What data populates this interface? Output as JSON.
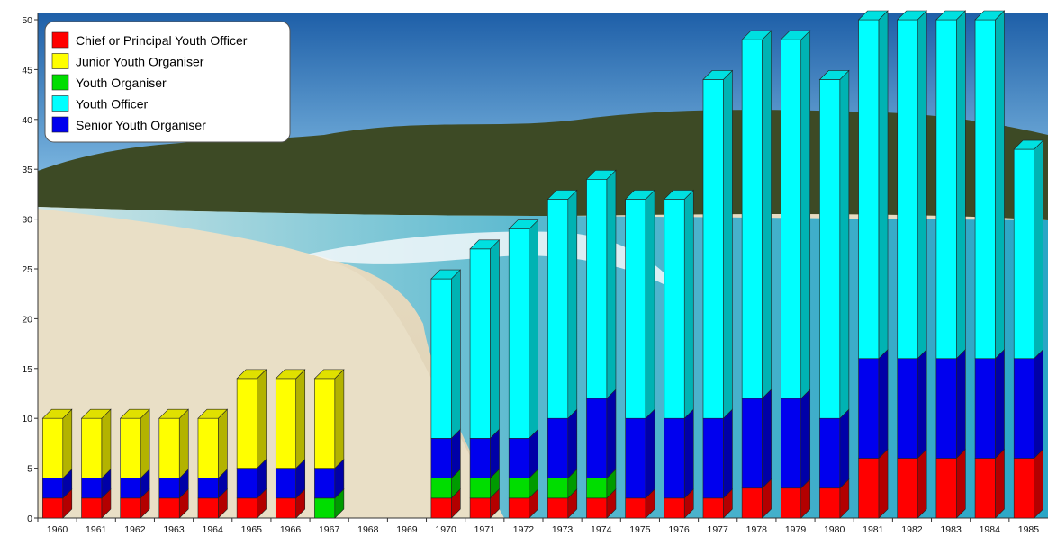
{
  "chart_data": {
    "type": "bar",
    "stacked": true,
    "style": "3d",
    "background": "beach-photo",
    "categories": [
      "1960",
      "1961",
      "1962",
      "1963",
      "1964",
      "1965",
      "1966",
      "1967",
      "1968",
      "1969",
      "1970",
      "1971",
      "1972",
      "1973",
      "1974",
      "1975",
      "1976",
      "1977",
      "1978",
      "1979",
      "1980",
      "1981",
      "1982",
      "1983",
      "1984",
      "1985"
    ],
    "ylim": [
      0,
      50
    ],
    "yticks": [
      0,
      5,
      10,
      15,
      20,
      25,
      30,
      35,
      40,
      45,
      50
    ],
    "grid": false,
    "legend_position": "top-left",
    "series": [
      {
        "name": "Chief or Principal Youth Officer",
        "color": "#ff0000",
        "values": [
          2,
          2,
          2,
          2,
          2,
          2,
          2,
          0,
          0,
          0,
          2,
          2,
          2,
          2,
          2,
          2,
          2,
          2,
          3,
          3,
          3,
          6,
          6,
          6,
          6,
          6
        ]
      },
      {
        "name": "Youth Organiser",
        "color": "#00dd00",
        "values": [
          0,
          0,
          0,
          0,
          0,
          0,
          0,
          2,
          0,
          0,
          2,
          2,
          2,
          2,
          2,
          0,
          0,
          0,
          0,
          0,
          0,
          0,
          0,
          0,
          0,
          0
        ]
      },
      {
        "name": "Senior Youth Organiser",
        "color": "#0000ee",
        "values": [
          2,
          2,
          2,
          2,
          2,
          3,
          3,
          3,
          0,
          0,
          4,
          4,
          4,
          6,
          8,
          8,
          8,
          8,
          9,
          9,
          7,
          10,
          10,
          10,
          10,
          10
        ]
      },
      {
        "name": "Youth Officer",
        "color": "#00ffff",
        "values": [
          0,
          0,
          0,
          0,
          0,
          0,
          0,
          0,
          0,
          0,
          16,
          19,
          21,
          22,
          22,
          22,
          22,
          34,
          36,
          36,
          34,
          34,
          34,
          34,
          34,
          21
        ]
      },
      {
        "name": "Junior Youth Organiser",
        "color": "#ffff00",
        "values": [
          6,
          6,
          6,
          6,
          6,
          9,
          9,
          9,
          0,
          0,
          0,
          0,
          0,
          0,
          0,
          0,
          0,
          0,
          0,
          0,
          0,
          0,
          0,
          0,
          0,
          0
        ]
      }
    ],
    "legend_order": [
      "Chief or Principal Youth Officer",
      "Junior Youth Organiser",
      "Youth Organiser",
      "Youth Officer",
      "Senior Youth Organiser"
    ]
  }
}
